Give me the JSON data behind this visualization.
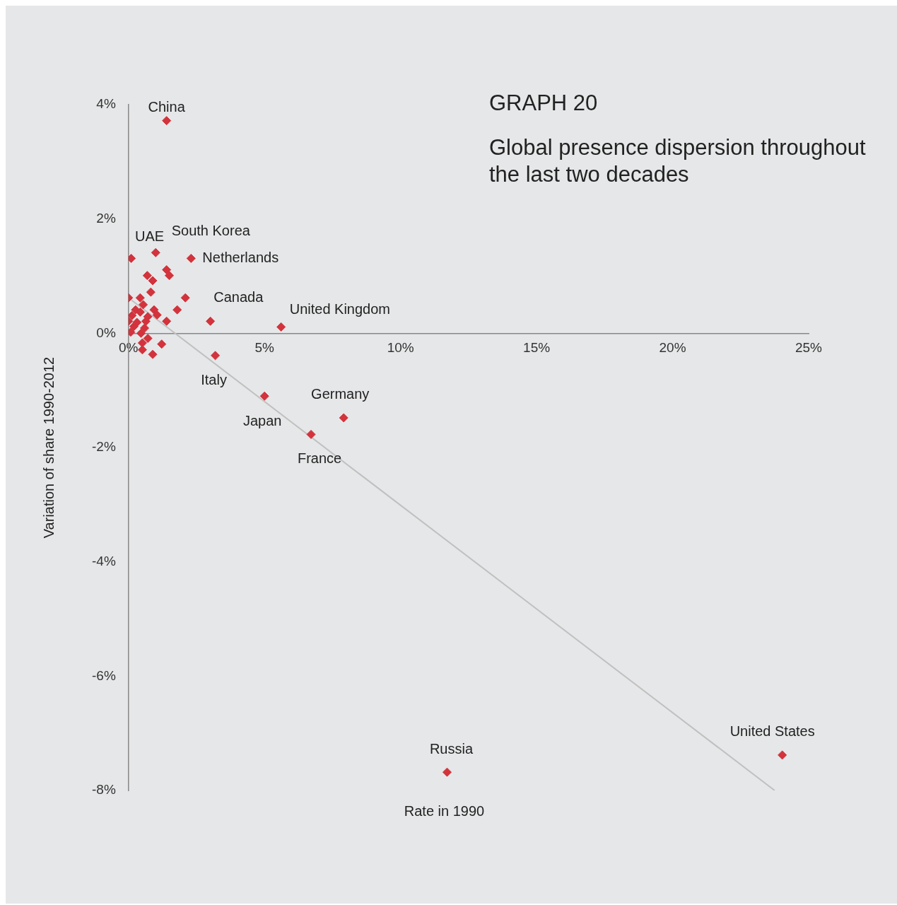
{
  "chart_data": {
    "type": "scatter",
    "title": "GRAPH 20",
    "subtitle": "Global presence dispersion throughout the last two decades",
    "xlabel": "Rate in 1990",
    "ylabel": "Variation of share 1990-2012",
    "xlim": [
      0,
      25
    ],
    "xticks": [
      {
        "value": 0,
        "label": "0%"
      },
      {
        "value": 5,
        "label": "5%"
      },
      {
        "value": 10,
        "label": "10%"
      },
      {
        "value": 15,
        "label": "15%"
      },
      {
        "value": 20,
        "label": "20%"
      },
      {
        "value": 25,
        "label": "25%"
      }
    ],
    "ylim": [
      -8,
      4
    ],
    "yticks": [
      {
        "value": -8,
        "label": "-8%"
      },
      {
        "value": -6,
        "label": "-6%"
      },
      {
        "value": -4,
        "label": "-4%"
      },
      {
        "value": -2,
        "label": "-2%"
      },
      {
        "value": 0,
        "label": "0%"
      },
      {
        "value": 2,
        "label": "2%"
      },
      {
        "value": 4,
        "label": "4%"
      }
    ],
    "grid": false,
    "legend": false,
    "marker": "diamond",
    "series": [
      {
        "color": "#d2333c",
        "x": [
          1.4,
          0.1,
          1.0,
          2.3,
          2.09,
          5.61,
          3.19,
          5.0,
          7.91,
          6.71,
          11.71,
          24.03,
          1.4,
          1.5,
          0.69,
          0.89,
          0.82,
          0,
          0.43,
          1.79,
          1.4,
          3.01,
          0.94,
          1.05,
          0.54,
          0.26,
          0.13,
          0,
          0.2,
          0.38,
          0.64,
          0.71,
          0.59,
          0.08,
          0.46,
          0.71,
          0.51,
          1.22,
          0.51,
          0.89,
          0.31,
          0.43
        ],
        "values": [
          3.72,
          1.31,
          1.41,
          1.31,
          0.62,
          0.11,
          -0.39,
          -1.1,
          -1.48,
          -1.77,
          -7.68,
          -7.38,
          1.11,
          1.01,
          1.01,
          0.92,
          0.72,
          0.62,
          0.62,
          0.41,
          0.21,
          0.21,
          0.41,
          0.32,
          0.5,
          0.41,
          0.31,
          0.21,
          0.12,
          null,
          0.21,
          0.29,
          0.09,
          0.02,
          0,
          -0.09,
          -0.17,
          -0.19,
          -0.29,
          -0.37,
          0.19,
          0.37
        ]
      },
      {
        "type": "line",
        "color": "#c0c0c0",
        "marker": "none",
        "x": [
          0,
          23.75
        ],
        "values": [
          0.62,
          -8
        ]
      }
    ],
    "annotations": [
      {
        "text": "China",
        "x": 1.4,
        "y": 3.72
      },
      {
        "text": "UAE",
        "x": 0.1,
        "y": 1.31
      },
      {
        "text": "South Korea",
        "x": 1.0,
        "y": 1.41
      },
      {
        "text": "Netherlands",
        "x": 2.3,
        "y": 1.31
      },
      {
        "text": "Canada",
        "x": 2.09,
        "y": 0.62
      },
      {
        "text": "United Kingdom",
        "x": 5.61,
        "y": 0.11
      },
      {
        "text": "Italy",
        "x": 3.19,
        "y": -0.39
      },
      {
        "text": "Japan",
        "x": 5.0,
        "y": -1.1
      },
      {
        "text": "Germany",
        "x": 7.91,
        "y": -1.48
      },
      {
        "text": "France",
        "x": 6.71,
        "y": -1.77
      },
      {
        "text": "Russia",
        "x": 11.71,
        "y": -7.68
      },
      {
        "text": "United States",
        "x": 24.03,
        "y": -7.38
      }
    ]
  }
}
